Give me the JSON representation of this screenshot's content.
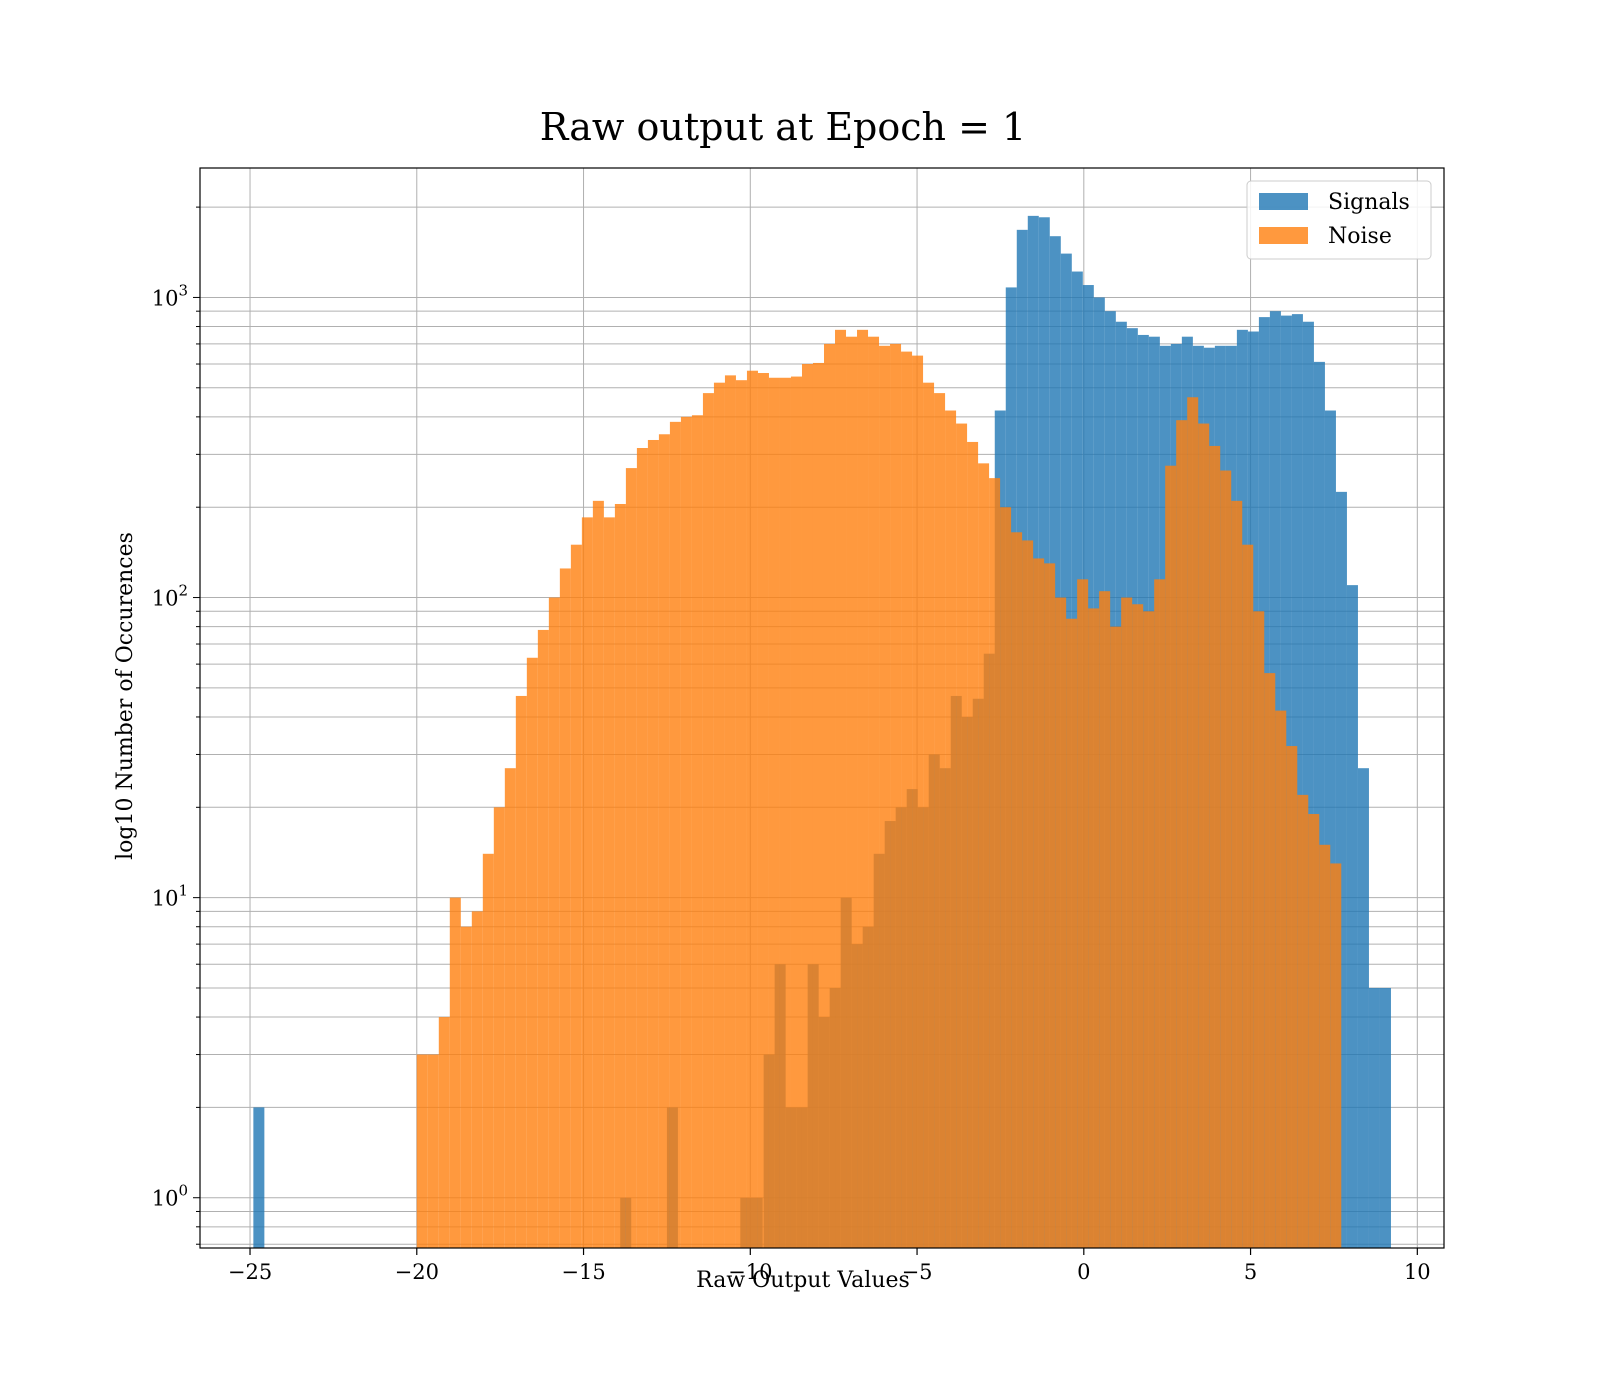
{
  "chart_data": {
    "type": "bar",
    "title": "Raw output at Epoch = 1",
    "xlabel": "Raw Output Values",
    "ylabel": "log10 Number of Occurences",
    "xlim": [
      -26.5,
      10.8
    ],
    "ylim": [
      0.68,
      2700
    ],
    "yscale": "log",
    "grid": true,
    "legend_position": "top-right",
    "x_ticks": [
      -25,
      -20,
      -15,
      -10,
      -5,
      0,
      5,
      10
    ],
    "x_tick_labels": [
      "−25",
      "−20",
      "−15",
      "−10",
      "−5",
      "0",
      "5",
      "10"
    ],
    "y_ticks": [
      1,
      10,
      100,
      1000
    ],
    "y_tick_labels": [
      {
        "base": "10",
        "exp": "0"
      },
      {
        "base": "10",
        "exp": "1"
      },
      {
        "base": "10",
        "exp": "2"
      },
      {
        "base": "10",
        "exp": "3"
      }
    ],
    "series": [
      {
        "name": "Signals",
        "color": "#1f77b4",
        "opacity": 0.8,
        "bins": [
          [
            -24.9,
            -24.57,
            2
          ],
          [
            -13.9,
            -13.57,
            1
          ],
          [
            -12.5,
            -12.17,
            2
          ],
          [
            -10.3,
            -9.63,
            1
          ],
          [
            -9.6,
            -9.27,
            3
          ],
          [
            -9.27,
            -8.94,
            6
          ],
          [
            -8.94,
            -8.61,
            2
          ],
          [
            -8.61,
            -8.28,
            2
          ],
          [
            -8.28,
            -7.95,
            6
          ],
          [
            -7.95,
            -7.62,
            4
          ],
          [
            -7.62,
            -7.29,
            5
          ],
          [
            -7.29,
            -6.96,
            10
          ],
          [
            -6.96,
            -6.63,
            7
          ],
          [
            -6.63,
            -6.3,
            8
          ],
          [
            -6.3,
            -5.97,
            14
          ],
          [
            -5.97,
            -5.64,
            18
          ],
          [
            -5.64,
            -5.31,
            20
          ],
          [
            -5.31,
            -4.98,
            23
          ],
          [
            -4.98,
            -4.65,
            20
          ],
          [
            -4.65,
            -4.32,
            30
          ],
          [
            -4.32,
            -3.99,
            27
          ],
          [
            -3.99,
            -3.66,
            47
          ],
          [
            -3.66,
            -3.33,
            40
          ],
          [
            -3.33,
            -3.0,
            46
          ],
          [
            -3.0,
            -2.67,
            65
          ],
          [
            -2.67,
            -2.34,
            420
          ],
          [
            -2.34,
            -2.01,
            1080
          ],
          [
            -2.01,
            -1.68,
            1680
          ],
          [
            -1.68,
            -1.35,
            1870
          ],
          [
            -1.35,
            -1.02,
            1850
          ],
          [
            -1.02,
            -0.69,
            1600
          ],
          [
            -0.69,
            -0.36,
            1400
          ],
          [
            -0.36,
            -0.03,
            1220
          ],
          [
            -0.03,
            0.3,
            1100
          ],
          [
            0.3,
            0.63,
            1000
          ],
          [
            0.63,
            0.96,
            900
          ],
          [
            0.96,
            1.29,
            830
          ],
          [
            1.29,
            1.62,
            790
          ],
          [
            1.62,
            1.95,
            750
          ],
          [
            1.95,
            2.28,
            740
          ],
          [
            2.28,
            2.61,
            690
          ],
          [
            2.61,
            2.94,
            700
          ],
          [
            2.94,
            3.27,
            740
          ],
          [
            3.27,
            3.6,
            690
          ],
          [
            3.6,
            3.93,
            680
          ],
          [
            3.93,
            4.26,
            690
          ],
          [
            4.26,
            4.59,
            690
          ],
          [
            4.59,
            4.92,
            780
          ],
          [
            4.92,
            5.25,
            770
          ],
          [
            5.25,
            5.58,
            860
          ],
          [
            5.58,
            5.91,
            900
          ],
          [
            5.91,
            6.24,
            870
          ],
          [
            6.24,
            6.57,
            880
          ],
          [
            6.57,
            6.9,
            830
          ],
          [
            6.9,
            7.23,
            610
          ],
          [
            7.23,
            7.56,
            420
          ],
          [
            7.56,
            7.89,
            225
          ],
          [
            7.89,
            8.22,
            110
          ],
          [
            8.22,
            8.55,
            27
          ],
          [
            8.55,
            8.88,
            5
          ],
          [
            8.88,
            9.21,
            5
          ]
        ]
      },
      {
        "name": "Noise",
        "color": "#ff7f0e",
        "opacity": 0.8,
        "bins": [
          [
            -20.0,
            -19.67,
            3
          ],
          [
            -19.67,
            -19.34,
            3
          ],
          [
            -19.34,
            -19.01,
            4
          ],
          [
            -19.01,
            -18.68,
            10
          ],
          [
            -18.68,
            -18.35,
            8
          ],
          [
            -18.35,
            -18.02,
            9
          ],
          [
            -18.02,
            -17.69,
            14
          ],
          [
            -17.69,
            -17.36,
            20
          ],
          [
            -17.36,
            -17.03,
            27
          ],
          [
            -17.03,
            -16.7,
            47
          ],
          [
            -16.7,
            -16.37,
            63
          ],
          [
            -16.37,
            -16.04,
            78
          ],
          [
            -16.04,
            -15.71,
            100
          ],
          [
            -15.71,
            -15.38,
            125
          ],
          [
            -15.38,
            -15.05,
            150
          ],
          [
            -15.05,
            -14.72,
            185
          ],
          [
            -14.72,
            -14.39,
            210
          ],
          [
            -14.39,
            -14.06,
            185
          ],
          [
            -14.06,
            -13.73,
            205
          ],
          [
            -13.73,
            -13.4,
            270
          ],
          [
            -13.4,
            -13.07,
            315
          ],
          [
            -13.07,
            -12.74,
            335
          ],
          [
            -12.74,
            -12.41,
            350
          ],
          [
            -12.41,
            -12.08,
            385
          ],
          [
            -12.08,
            -11.75,
            400
          ],
          [
            -11.75,
            -11.42,
            405
          ],
          [
            -11.42,
            -11.09,
            480
          ],
          [
            -11.09,
            -10.76,
            520
          ],
          [
            -10.76,
            -10.43,
            550
          ],
          [
            -10.43,
            -10.1,
            530
          ],
          [
            -10.1,
            -9.77,
            570
          ],
          [
            -9.77,
            -9.44,
            560
          ],
          [
            -9.44,
            -9.11,
            540
          ],
          [
            -9.11,
            -8.78,
            540
          ],
          [
            -8.78,
            -8.45,
            545
          ],
          [
            -8.45,
            -8.12,
            600
          ],
          [
            -8.12,
            -7.79,
            605
          ],
          [
            -7.79,
            -7.46,
            700
          ],
          [
            -7.46,
            -7.13,
            780
          ],
          [
            -7.13,
            -6.8,
            740
          ],
          [
            -6.8,
            -6.47,
            780
          ],
          [
            -6.47,
            -6.14,
            740
          ],
          [
            -6.14,
            -5.81,
            690
          ],
          [
            -5.81,
            -5.48,
            700
          ],
          [
            -5.48,
            -5.15,
            660
          ],
          [
            -5.15,
            -4.82,
            640
          ],
          [
            -4.82,
            -4.49,
            520
          ],
          [
            -4.49,
            -4.16,
            480
          ],
          [
            -4.16,
            -3.83,
            420
          ],
          [
            -3.83,
            -3.5,
            380
          ],
          [
            -3.5,
            -3.17,
            330
          ],
          [
            -3.17,
            -2.84,
            280
          ],
          [
            -2.84,
            -2.51,
            250
          ],
          [
            -2.51,
            -2.18,
            200
          ],
          [
            -2.18,
            -1.85,
            165
          ],
          [
            -1.85,
            -1.52,
            155
          ],
          [
            -1.52,
            -1.19,
            135
          ],
          [
            -1.19,
            -0.86,
            130
          ],
          [
            -0.86,
            -0.53,
            100
          ],
          [
            -0.53,
            -0.2,
            85
          ],
          [
            -0.2,
            0.13,
            115
          ],
          [
            0.13,
            0.46,
            92
          ],
          [
            0.46,
            0.79,
            105
          ],
          [
            0.79,
            1.12,
            80
          ],
          [
            1.12,
            1.45,
            100
          ],
          [
            1.45,
            1.78,
            95
          ],
          [
            1.78,
            2.11,
            90
          ],
          [
            2.11,
            2.44,
            115
          ],
          [
            2.44,
            2.77,
            275
          ],
          [
            2.77,
            3.1,
            390
          ],
          [
            3.1,
            3.43,
            465
          ],
          [
            3.43,
            3.76,
            380
          ],
          [
            3.76,
            4.09,
            320
          ],
          [
            4.09,
            4.42,
            265
          ],
          [
            4.42,
            4.75,
            210
          ],
          [
            4.75,
            5.08,
            150
          ],
          [
            5.08,
            5.41,
            90
          ],
          [
            5.41,
            5.74,
            56
          ],
          [
            5.74,
            6.07,
            42
          ],
          [
            6.07,
            6.4,
            32
          ],
          [
            6.4,
            6.73,
            22
          ],
          [
            6.73,
            7.06,
            19
          ],
          [
            7.06,
            7.39,
            15
          ],
          [
            7.39,
            7.72,
            13
          ]
        ]
      }
    ]
  }
}
